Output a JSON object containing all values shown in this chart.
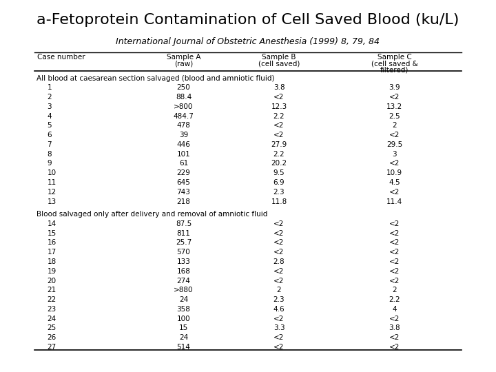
{
  "title": "a-Fetoprotein Contamination of Cell Saved Blood (ku/L)",
  "subtitle": "International Journal of Obstetric Anesthesia (1999) 8, 79, 84",
  "col_headers_line1": [
    "Case number",
    "Sample A",
    "Sample B",
    "Sample C"
  ],
  "col_headers_line2": [
    "",
    "(raw)",
    "(cell saved)",
    "(cell saved &"
  ],
  "col_headers_line3": [
    "",
    "",
    "",
    "filtered)"
  ],
  "section1_label": "All blood at caesarean section salvaged (blood and amniotic fluid)",
  "section1_rows": [
    [
      "1",
      "250",
      "3.8",
      "3.9"
    ],
    [
      "2",
      "88.4",
      "<2",
      "<2"
    ],
    [
      "3",
      ">800",
      "12.3",
      "13.2"
    ],
    [
      "4",
      "484.7",
      "2.2",
      "2.5"
    ],
    [
      "5",
      "478",
      "<2",
      "2"
    ],
    [
      "6",
      "39",
      "<2",
      "<2"
    ],
    [
      "7",
      "446",
      "27.9",
      "29.5"
    ],
    [
      "8",
      "101",
      "2.2",
      "3"
    ],
    [
      "9",
      "61",
      "20.2",
      "<2"
    ],
    [
      "10",
      "229",
      "9.5",
      "10.9"
    ],
    [
      "11",
      "645",
      "6.9",
      "4.5"
    ],
    [
      "12",
      "743",
      "2.3",
      "<2"
    ],
    [
      "13",
      "218",
      "11.8",
      "11.4"
    ]
  ],
  "section2_label": "Blood salvaged only after delivery and removal of amniotic fluid",
  "section2_rows": [
    [
      "14",
      "87.5",
      "<2",
      "<2"
    ],
    [
      "15",
      "811",
      "<2",
      "<2"
    ],
    [
      "16",
      "25.7",
      "<2",
      "<2"
    ],
    [
      "17",
      "570",
      "<2",
      "<2"
    ],
    [
      "18",
      "133",
      "2.8",
      "<2"
    ],
    [
      "19",
      "168",
      "<2",
      "<2"
    ],
    [
      "20",
      "274",
      "<2",
      "<2"
    ],
    [
      "21",
      ">880",
      "2",
      "2"
    ],
    [
      "22",
      "24",
      "2.3",
      "2.2"
    ],
    [
      "23",
      "358",
      "4.6",
      "4"
    ],
    [
      "24",
      "100",
      "<2",
      "<2"
    ],
    [
      "25",
      "15",
      "3.3",
      "3.8"
    ],
    [
      "26",
      "24",
      "<2",
      "<2"
    ],
    [
      "27",
      "514",
      "<2",
      "<2"
    ]
  ],
  "bg_color": "#ffffff",
  "text_color": "#000000",
  "title_fontsize": 16,
  "subtitle_fontsize": 9,
  "table_fontsize": 7.5,
  "header_fontsize": 7.5,
  "section_fontsize": 7.5
}
